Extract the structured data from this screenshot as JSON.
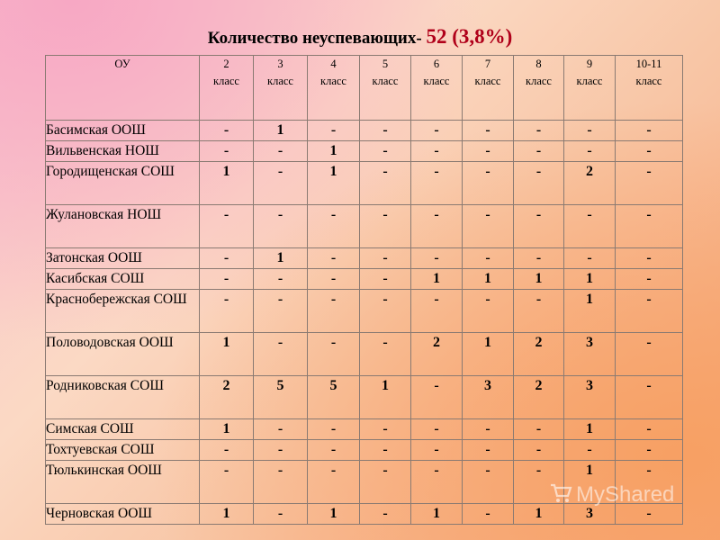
{
  "title": {
    "text": "Количество неуспевающих-",
    "highlight": "52 (3,8%)"
  },
  "table": {
    "headers": [
      [
        "ОУ"
      ],
      [
        "2",
        "класс"
      ],
      [
        "3",
        "класс"
      ],
      [
        "4",
        "класс"
      ],
      [
        "5",
        "класс"
      ],
      [
        "6",
        "класс"
      ],
      [
        "7",
        "класс"
      ],
      [
        "8",
        "класс"
      ],
      [
        "9",
        "класс"
      ],
      [
        "10-11",
        "класс"
      ]
    ],
    "rows": [
      {
        "name": "Басимская ООШ",
        "values": [
          "-",
          "1",
          "-",
          "-",
          "-",
          "-",
          "-",
          "-",
          "-"
        ]
      },
      {
        "name": "Вильвенская НОШ",
        "values": [
          "-",
          "-",
          "1",
          "-",
          "-",
          "-",
          "-",
          "-",
          "-"
        ]
      },
      {
        "name": "Городищенская СОШ",
        "values": [
          "1",
          "-",
          "1",
          "-",
          "-",
          "-",
          "-",
          "2",
          "-"
        ]
      },
      {
        "name": "Жулановская НОШ",
        "values": [
          "-",
          "-",
          "-",
          "-",
          "-",
          "-",
          "-",
          "-",
          "-"
        ]
      },
      {
        "name": "Затонская ООШ",
        "values": [
          "-",
          "1",
          "-",
          "-",
          "-",
          "-",
          "-",
          "-",
          "-"
        ]
      },
      {
        "name": "Касибская СОШ",
        "values": [
          "-",
          "-",
          "-",
          "-",
          "1",
          "1",
          "1",
          "1",
          "-"
        ]
      },
      {
        "name": "Краснобережская СОШ",
        "values": [
          "-",
          "-",
          "-",
          "-",
          "-",
          "-",
          "-",
          "1",
          "-"
        ]
      },
      {
        "name": "Половодовская ООШ",
        "values": [
          "1",
          "-",
          "-",
          "-",
          "2",
          "1",
          "2",
          "3",
          "-"
        ]
      },
      {
        "name": "Родниковская СОШ",
        "values": [
          "2",
          "5",
          "5",
          "1",
          "-",
          "3",
          "2",
          "3",
          "-"
        ]
      },
      {
        "name": "Симская СОШ",
        "values": [
          "1",
          "-",
          "-",
          "-",
          "-",
          "-",
          "-",
          "1",
          "-"
        ]
      },
      {
        "name": "Тохтуевская СОШ",
        "values": [
          "-",
          "-",
          "-",
          "-",
          "-",
          "-",
          "-",
          "-",
          "-"
        ]
      },
      {
        "name": "Тюлькинская ООШ",
        "values": [
          "-",
          "-",
          "-",
          "-",
          "-",
          "-",
          "-",
          "1",
          "-"
        ]
      },
      {
        "name": "Черновская ООШ",
        "values": [
          "1",
          "-",
          "1",
          "-",
          "1",
          "-",
          "1",
          "3",
          "-"
        ]
      }
    ]
  },
  "watermark": {
    "icon": "cart-icon",
    "text": "MyShared"
  }
}
